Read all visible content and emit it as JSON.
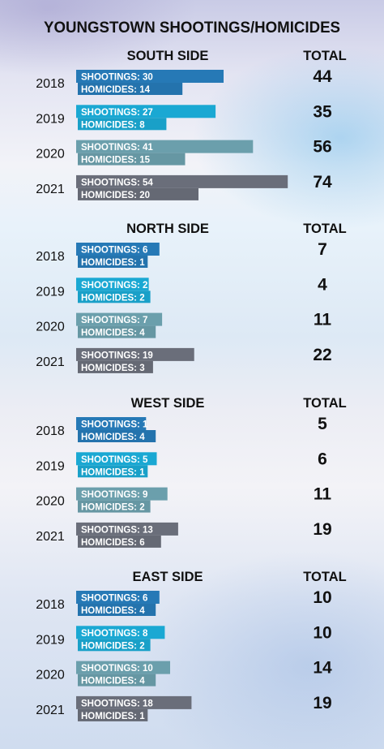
{
  "chart_data": {
    "type": "bar",
    "title": "YOUNGSTOWN SHOOTINGS/HOMICIDES",
    "total_header": "TOTAL",
    "series_labels": {
      "shootings": "SHOOTINGS:",
      "homicides": "HOMICIDES:"
    },
    "colors": {
      "2018": "#2679b6",
      "2019": "#1aa8d3",
      "2020": "#6b9fac",
      "2021": "#6a6e7a"
    },
    "sections": [
      {
        "name": "SOUTH SIDE",
        "rows": [
          {
            "year": "2018",
            "shootings": 30,
            "homicides": 14,
            "total": 44
          },
          {
            "year": "2019",
            "shootings": 27,
            "homicides": 8,
            "total": 35
          },
          {
            "year": "2020",
            "shootings": 41,
            "homicides": 15,
            "total": 56
          },
          {
            "year": "2021",
            "shootings": 54,
            "homicides": 20,
            "total": 74
          }
        ]
      },
      {
        "name": "NORTH SIDE",
        "rows": [
          {
            "year": "2018",
            "shootings": 6,
            "homicides": 1,
            "total": 7
          },
          {
            "year": "2019",
            "shootings": 2,
            "homicides": 2,
            "total": 4
          },
          {
            "year": "2020",
            "shootings": 7,
            "homicides": 4,
            "total": 11
          },
          {
            "year": "2021",
            "shootings": 19,
            "homicides": 3,
            "total": 22
          }
        ]
      },
      {
        "name": "WEST SIDE",
        "rows": [
          {
            "year": "2018",
            "shootings": 1,
            "homicides": 4,
            "total": 5
          },
          {
            "year": "2019",
            "shootings": 5,
            "homicides": 1,
            "total": 6
          },
          {
            "year": "2020",
            "shootings": 9,
            "homicides": 2,
            "total": 11
          },
          {
            "year": "2021",
            "shootings": 13,
            "homicides": 6,
            "total": 19
          }
        ]
      },
      {
        "name": "EAST SIDE",
        "rows": [
          {
            "year": "2018",
            "shootings": 6,
            "homicides": 4,
            "total": 10
          },
          {
            "year": "2019",
            "shootings": 8,
            "homicides": 2,
            "total": 10
          },
          {
            "year": "2020",
            "shootings": 10,
            "homicides": 4,
            "total": 14
          },
          {
            "year": "2021",
            "shootings": 18,
            "homicides": 1,
            "total": 19
          }
        ]
      }
    ]
  }
}
